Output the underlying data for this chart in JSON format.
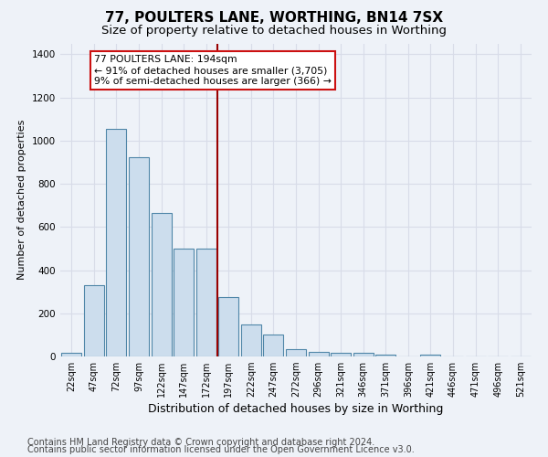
{
  "title1": "77, POULTERS LANE, WORTHING, BN14 7SX",
  "title2": "Size of property relative to detached houses in Worthing",
  "xlabel": "Distribution of detached houses by size in Worthing",
  "ylabel": "Number of detached properties",
  "categories": [
    "22sqm",
    "47sqm",
    "72sqm",
    "97sqm",
    "122sqm",
    "147sqm",
    "172sqm",
    "197sqm",
    "222sqm",
    "247sqm",
    "272sqm",
    "296sqm",
    "321sqm",
    "346sqm",
    "371sqm",
    "396sqm",
    "421sqm",
    "446sqm",
    "471sqm",
    "496sqm",
    "521sqm"
  ],
  "values": [
    18,
    330,
    1055,
    925,
    665,
    500,
    500,
    275,
    150,
    100,
    35,
    20,
    18,
    15,
    10,
    0,
    8,
    0,
    0,
    0,
    0
  ],
  "bar_color": "#ccdded",
  "bar_edge_color": "#4f86a8",
  "vline_color": "#990000",
  "annotation_text": "77 POULTERS LANE: 194sqm\n← 91% of detached houses are smaller (3,705)\n9% of semi-detached houses are larger (366) →",
  "annotation_box_facecolor": "#ffffff",
  "annotation_box_edgecolor": "#cc1111",
  "ylim": [
    0,
    1450
  ],
  "yticks": [
    0,
    200,
    400,
    600,
    800,
    1000,
    1200,
    1400
  ],
  "background_color": "#eef2f8",
  "grid_color": "#d8dce8",
  "title1_fontsize": 11,
  "title2_fontsize": 9.5,
  "annotation_fontsize": 7.8,
  "ylabel_fontsize": 8,
  "xlabel_fontsize": 9,
  "tick_fontsize": 7,
  "footer1": "Contains HM Land Registry data © Crown copyright and database right 2024.",
  "footer2": "Contains public sector information licensed under the Open Government Licence v3.0.",
  "footer_fontsize": 7,
  "vline_x_index": 7
}
